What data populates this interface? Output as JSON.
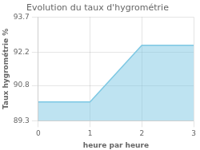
{
  "chart_data": {
    "type": "area",
    "title": "Evolution du taux d'hygrométrie",
    "xlabel": "heure par heure",
    "ylabel": "Taux hygrométrie %",
    "x": [
      0,
      1,
      2,
      3
    ],
    "values": [
      90.1,
      90.1,
      92.5,
      92.5
    ],
    "color": "#7ec8e3",
    "xlim": [
      0,
      3
    ],
    "xticks": [
      0,
      1,
      2,
      3
    ],
    "ylim": [
      89.3,
      93.7
    ],
    "yticks": [
      89.3,
      90.8,
      92.2,
      93.7
    ],
    "grid": true
  }
}
